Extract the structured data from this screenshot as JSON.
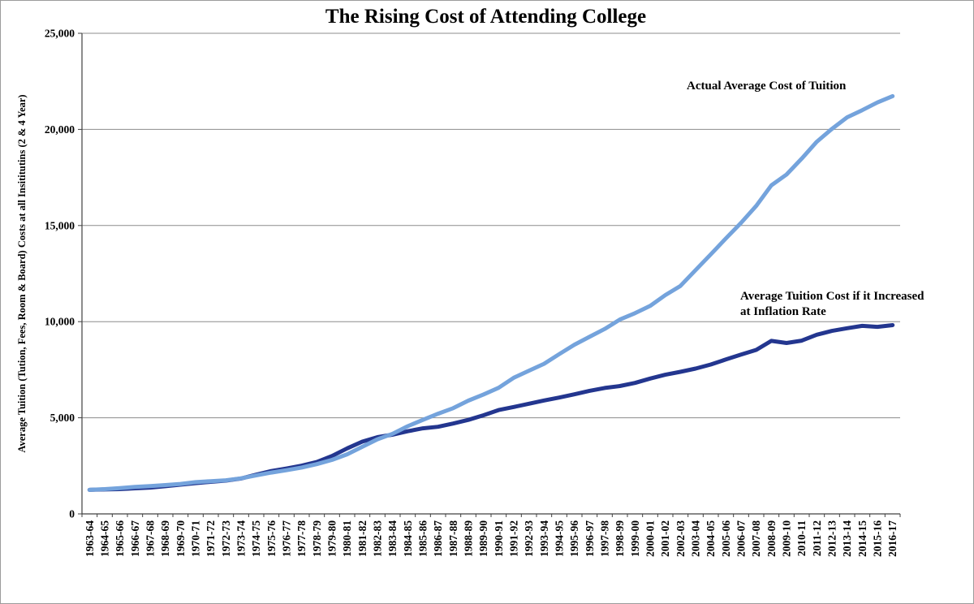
{
  "chart_data": {
    "type": "line",
    "title": "The Rising Cost of Attending College",
    "xlabel": "",
    "ylabel": "Average Tuition (Tution, Fees, Room & Board) Costs at all Insititutins (2 & 4 Year)",
    "ylim": [
      0,
      25000
    ],
    "y_ticks": [
      0,
      5000,
      10000,
      15000,
      20000,
      25000
    ],
    "y_tick_labels": [
      "0",
      "5,000",
      "10,000",
      "15,000",
      "20,000",
      "25,000"
    ],
    "grid": "horizontal",
    "legend_position": "inline-annotations",
    "categories": [
      "1963-64",
      "1964-65",
      "1965-66",
      "1966-67",
      "1967-68",
      "1968-69",
      "1969-70",
      "1970-71",
      "1971-72",
      "1972-73",
      "1973-74",
      "1974-75",
      "1975-76",
      "1976-77",
      "1977-78",
      "1978-79",
      "1979-80",
      "1980-81",
      "1981-82",
      "1982-83",
      "1983-84",
      "1984-85",
      "1985-86",
      "1986-87",
      "1987-88",
      "1988-89",
      "1989-90",
      "1990-91",
      "1991-92",
      "1992-93",
      "1993-94",
      "1994-95",
      "1995-96",
      "1996-97",
      "1997-98",
      "1998-99",
      "1999-00",
      "2000-01",
      "2001-02",
      "2002-03",
      "2003-04",
      "2004-05",
      "2005-06",
      "2006-07",
      "2007-08",
      "2008-09",
      "2009-10",
      "2010-11",
      "2011-12",
      "2012-13",
      "2013-14",
      "2014-15",
      "2015-16",
      "2016-17"
    ],
    "series": [
      {
        "id": "actual-average-cost",
        "name": "Actual Average Cost of Tuition",
        "color": "#74A3DC",
        "values": [
          1250,
          1290,
          1340,
          1400,
          1450,
          1500,
          1560,
          1650,
          1700,
          1750,
          1850,
          2000,
          2150,
          2270,
          2410,
          2590,
          2810,
          3100,
          3490,
          3880,
          4170,
          4560,
          4890,
          5210,
          5500,
          5890,
          6210,
          6560,
          7080,
          7450,
          7810,
          8310,
          8800,
          9210,
          9620,
          10110,
          10440,
          10820,
          11380,
          11860,
          12680,
          13500,
          14330,
          15140,
          16020,
          17090,
          17650,
          18480,
          19360,
          20030,
          20630,
          21000,
          21400,
          21730
        ]
      },
      {
        "id": "inflation-adjusted-cost",
        "name": "Average Tuition Cost if it Increased at Inflation Rate",
        "color": "#23368F",
        "values": [
          1250,
          1270,
          1290,
          1330,
          1370,
          1440,
          1520,
          1600,
          1670,
          1730,
          1840,
          2040,
          2230,
          2360,
          2510,
          2700,
          3010,
          3410,
          3760,
          3990,
          4120,
          4300,
          4450,
          4530,
          4700,
          4890,
          5130,
          5400,
          5560,
          5730,
          5900,
          6050,
          6220,
          6400,
          6550,
          6650,
          6810,
          7040,
          7240,
          7390,
          7560,
          7770,
          8030,
          8290,
          8530,
          9000,
          8890,
          9010,
          9320,
          9520,
          9660,
          9780,
          9730,
          9820
        ]
      }
    ],
    "annotations": [
      {
        "name": "annotation-actual-series",
        "lines": [
          "Actual Average Cost of Tuition"
        ],
        "x": 845,
        "y": 109
      },
      {
        "name": "annotation-inflation-series",
        "lines": [
          "Average Tuition Cost if it Increased",
          "at Inflation Rate"
        ],
        "x": 911,
        "y": 368
      }
    ]
  }
}
